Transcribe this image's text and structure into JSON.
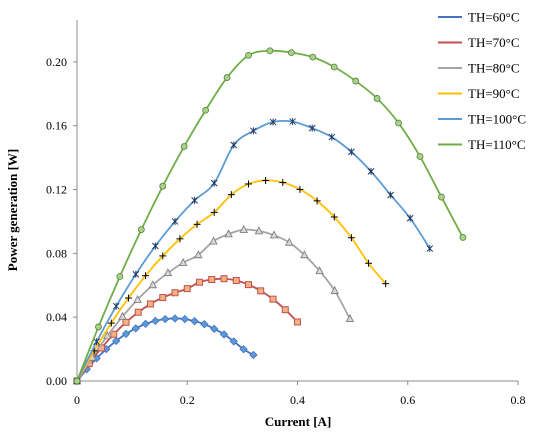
{
  "chart_data": {
    "type": "line",
    "title": "",
    "xlabel": "Current  [A]",
    "ylabel": "Power generation [W]",
    "xlim": [
      0,
      0.8
    ],
    "ylim": [
      0,
      0.22
    ],
    "x_ticks": [
      0,
      0.2,
      0.4,
      0.6,
      0.8
    ],
    "x_tick_labels": [
      "0",
      "0.2",
      "0.4",
      "0.6",
      "0.8"
    ],
    "y_ticks": [
      0,
      0.04,
      0.08,
      0.12,
      0.16,
      0.2
    ],
    "y_tick_labels": [
      "0.00",
      "0.04",
      "0.08",
      "0.12",
      "0.16",
      "0.20"
    ],
    "grid": false,
    "legend_position": "right",
    "series": [
      {
        "name": "TH=60°C",
        "color": "#4472C4",
        "marker": "diamond",
        "marker_fill": "#5B9BD5",
        "x": [
          0.0,
          0.0178,
          0.0356,
          0.0533,
          0.0711,
          0.0889,
          0.1067,
          0.1244,
          0.1422,
          0.16,
          0.1778,
          0.1956,
          0.2133,
          0.2311,
          0.2489,
          0.2667,
          0.2844,
          0.3022,
          0.32
        ],
        "y": [
          0.0,
          0.0074,
          0.0142,
          0.02,
          0.0251,
          0.0295,
          0.033,
          0.0358,
          0.0377,
          0.0388,
          0.0392,
          0.0388,
          0.0375,
          0.0356,
          0.0327,
          0.0292,
          0.0248,
          0.0199,
          0.0163
        ]
      },
      {
        "name": "TH=70°C",
        "color": "#C0504D",
        "marker": "square",
        "marker_fill": "#F4B183",
        "x": [
          0.0,
          0.0222,
          0.0444,
          0.0667,
          0.0889,
          0.1111,
          0.1333,
          0.1556,
          0.1778,
          0.2,
          0.2222,
          0.2444,
          0.2667,
          0.2889,
          0.3111,
          0.3333,
          0.3556,
          0.3778,
          0.4
        ],
        "y": [
          0.0,
          0.0109,
          0.0207,
          0.0293,
          0.0368,
          0.0431,
          0.0483,
          0.0523,
          0.0553,
          0.0579,
          0.0619,
          0.0636,
          0.0641,
          0.063,
          0.0604,
          0.0565,
          0.0513,
          0.0447,
          0.037
        ]
      },
      {
        "name": "TH=80°C",
        "color": "#A5A5A5",
        "marker": "triangle",
        "marker_fill": "#D9D9D9",
        "x": [
          0.0,
          0.0275,
          0.055,
          0.0825,
          0.11,
          0.1375,
          0.165,
          0.1925,
          0.22,
          0.2475,
          0.275,
          0.3025,
          0.33,
          0.3575,
          0.385,
          0.4125,
          0.44,
          0.4675,
          0.495
        ],
        "y": [
          0.0,
          0.0148,
          0.0283,
          0.0404,
          0.051,
          0.0602,
          0.0678,
          0.0741,
          0.079,
          0.0876,
          0.0921,
          0.0949,
          0.094,
          0.0914,
          0.0868,
          0.079,
          0.069,
          0.0566,
          0.039
        ]
      },
      {
        "name": "TH=90°C",
        "color": "#FFC000",
        "marker": "plus",
        "marker_fill": "#000000",
        "x": [
          0.0,
          0.0311,
          0.0622,
          0.0933,
          0.1244,
          0.1556,
          0.1867,
          0.2178,
          0.2489,
          0.28,
          0.3111,
          0.3422,
          0.3733,
          0.4044,
          0.4356,
          0.4667,
          0.4978,
          0.5289,
          0.56
        ],
        "y": [
          0.0,
          0.0189,
          0.0363,
          0.052,
          0.066,
          0.0784,
          0.0891,
          0.0982,
          0.1057,
          0.1168,
          0.1235,
          0.1257,
          0.1244,
          0.1201,
          0.1129,
          0.1028,
          0.0898,
          0.0738,
          0.061
        ]
      },
      {
        "name": "TH=100°C",
        "color": "#5B9BD5",
        "marker": "star",
        "marker_fill": "#1F3864",
        "x": [
          0.0,
          0.0356,
          0.0711,
          0.1067,
          0.1422,
          0.1778,
          0.2133,
          0.2489,
          0.2844,
          0.32,
          0.3556,
          0.3911,
          0.4267,
          0.4622,
          0.4978,
          0.5333,
          0.5689,
          0.6044,
          0.64
        ],
        "y": [
          0.0,
          0.0246,
          0.0469,
          0.0669,
          0.0846,
          0.1,
          0.1132,
          0.124,
          0.1479,
          0.1568,
          0.1623,
          0.1626,
          0.1585,
          0.1529,
          0.1436,
          0.1314,
          0.1166,
          0.102,
          0.083
        ]
      },
      {
        "name": "TH=110°C",
        "color": "#70AD47",
        "marker": "circle",
        "marker_fill": "#A9D18E",
        "x": [
          0.0,
          0.0389,
          0.0778,
          0.1167,
          0.1556,
          0.1944,
          0.2333,
          0.2722,
          0.3111,
          0.35,
          0.3889,
          0.4278,
          0.4667,
          0.5056,
          0.5444,
          0.5833,
          0.6222,
          0.6611,
          0.7
        ],
        "y": [
          0.0,
          0.0339,
          0.0655,
          0.0949,
          0.1221,
          0.147,
          0.1697,
          0.1902,
          0.2041,
          0.207,
          0.2058,
          0.203,
          0.1968,
          0.188,
          0.1771,
          0.1617,
          0.1407,
          0.1153,
          0.09
        ]
      }
    ]
  }
}
